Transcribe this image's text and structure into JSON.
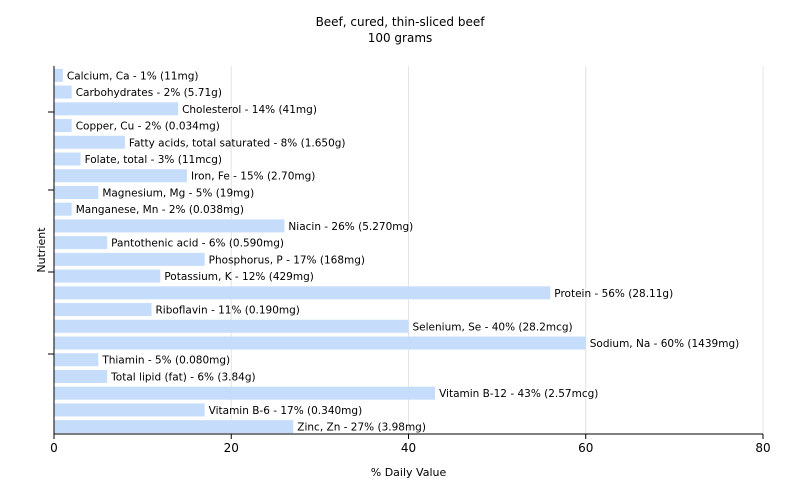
{
  "chart_data": {
    "type": "bar",
    "orientation": "horizontal",
    "title": "Beef, cured, thin-sliced beef",
    "subtitle": "100 grams",
    "xlabel": "% Daily Value",
    "ylabel": "Nutrient",
    "xlim": [
      0,
      80
    ],
    "xticks": [
      0,
      20,
      40,
      60,
      80
    ],
    "grid": true,
    "bar_color": "#c6dcfb",
    "grid_color": "#e4e4e4",
    "categories": [
      "Calcium, Ca",
      "Carbohydrates",
      "Cholesterol",
      "Copper, Cu",
      "Fatty acids, total saturated",
      "Folate, total",
      "Iron, Fe",
      "Magnesium, Mg",
      "Manganese, Mn",
      "Niacin",
      "Pantothenic acid",
      "Phosphorus, P",
      "Potassium, K",
      "Protein",
      "Riboflavin",
      "Selenium, Se",
      "Sodium, Na",
      "Thiamin",
      "Total lipid (fat)",
      "Vitamin B-12",
      "Vitamin B-6",
      "Zinc, Zn"
    ],
    "values": [
      1,
      2,
      14,
      2,
      8,
      3,
      15,
      5,
      2,
      26,
      6,
      17,
      12,
      56,
      11,
      40,
      60,
      5,
      6,
      43,
      17,
      27
    ],
    "labels": [
      "Calcium, Ca - 1% (11mg)",
      "Carbohydrates - 2% (5.71g)",
      "Cholesterol - 14% (41mg)",
      "Copper, Cu - 2% (0.034mg)",
      "Fatty acids, total saturated - 8% (1.650g)",
      "Folate, total - 3% (11mcg)",
      "Iron, Fe - 15% (2.70mg)",
      "Magnesium, Mg - 5% (19mg)",
      "Manganese, Mn - 2% (0.038mg)",
      "Niacin - 26% (5.270mg)",
      "Pantothenic acid - 6% (0.590mg)",
      "Phosphorus, P - 17% (168mg)",
      "Potassium, K - 12% (429mg)",
      "Protein - 56% (28.11g)",
      "Riboflavin - 11% (0.190mg)",
      "Selenium, Se - 40% (28.2mcg)",
      "Sodium, Na - 60% (1439mg)",
      "Thiamin - 5% (0.080mg)",
      "Total lipid (fat) - 6% (3.84g)",
      "Vitamin B-12 - 43% (2.57mcg)",
      "Vitamin B-6 - 17% (0.340mg)",
      "Zinc, Zn - 27% (3.98mg)"
    ]
  }
}
